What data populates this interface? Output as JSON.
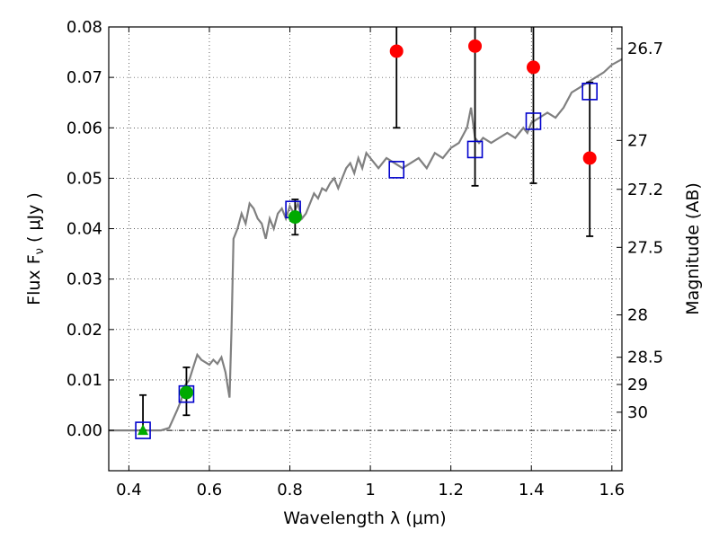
{
  "chart_data": {
    "type": "scatter",
    "xlabel": "Wavelength  λ (μm)",
    "ylabel_left": "Flux  F",
    "ylabel_left_sub": "ν",
    "ylabel_left_unit": "  ( μJy )",
    "ylabel_right": "Magnitude (AB)",
    "xlim": [
      0.35,
      1.625
    ],
    "ylim": [
      -0.008,
      0.08
    ],
    "grid": true,
    "x_ticks": [
      0.4,
      0.6,
      0.8,
      1.0,
      1.2,
      1.4,
      1.6
    ],
    "x_tick_labels": [
      "0.4",
      "0.6",
      "0.8",
      "1",
      "1.2",
      "1.4",
      "1.6"
    ],
    "y_ticks": [
      0.0,
      0.01,
      0.02,
      0.03,
      0.04,
      0.05,
      0.06,
      0.07,
      0.08
    ],
    "y_tick_labels": [
      "0.00",
      "0.01",
      "0.02",
      "0.03",
      "0.04",
      "0.05",
      "0.06",
      "0.07",
      "0.08"
    ],
    "right_ticks": [
      {
        "label": "26.7",
        "flux": 0.0757
      },
      {
        "label": "27",
        "flux": 0.0575
      },
      {
        "label": "27.2",
        "flux": 0.0478
      },
      {
        "label": "27.5",
        "flux": 0.0363
      },
      {
        "label": "28",
        "flux": 0.0229
      },
      {
        "label": "28.5",
        "flux": 0.0145
      },
      {
        "label": "29",
        "flux": 0.0091
      },
      {
        "label": "30",
        "flux": 0.0036
      }
    ],
    "model_spectrum": {
      "color": "#808080",
      "x": [
        0.35,
        0.48,
        0.5,
        0.52,
        0.53,
        0.54,
        0.55,
        0.56,
        0.57,
        0.58,
        0.59,
        0.6,
        0.61,
        0.62,
        0.63,
        0.64,
        0.645,
        0.65,
        0.655,
        0.66,
        0.67,
        0.68,
        0.69,
        0.7,
        0.71,
        0.72,
        0.73,
        0.74,
        0.75,
        0.76,
        0.77,
        0.78,
        0.79,
        0.8,
        0.81,
        0.82,
        0.83,
        0.84,
        0.85,
        0.86,
        0.87,
        0.88,
        0.89,
        0.9,
        0.91,
        0.92,
        0.93,
        0.94,
        0.95,
        0.96,
        0.97,
        0.98,
        0.99,
        1.0,
        1.02,
        1.04,
        1.06,
        1.08,
        1.1,
        1.12,
        1.14,
        1.16,
        1.18,
        1.2,
        1.22,
        1.24,
        1.25,
        1.26,
        1.27,
        1.28,
        1.3,
        1.32,
        1.34,
        1.36,
        1.38,
        1.39,
        1.4,
        1.42,
        1.44,
        1.46,
        1.48,
        1.5,
        1.52,
        1.54,
        1.56,
        1.58,
        1.6,
        1.625
      ],
      "y": [
        0.0,
        0.0,
        0.0005,
        0.004,
        0.006,
        0.009,
        0.01,
        0.0125,
        0.015,
        0.014,
        0.0135,
        0.013,
        0.014,
        0.0132,
        0.0145,
        0.0115,
        0.009,
        0.0065,
        0.02,
        0.038,
        0.04,
        0.043,
        0.041,
        0.045,
        0.044,
        0.042,
        0.041,
        0.038,
        0.042,
        0.04,
        0.043,
        0.044,
        0.042,
        0.0445,
        0.043,
        0.045,
        0.042,
        0.043,
        0.045,
        0.047,
        0.046,
        0.048,
        0.0475,
        0.049,
        0.05,
        0.048,
        0.05,
        0.052,
        0.053,
        0.051,
        0.054,
        0.052,
        0.055,
        0.054,
        0.052,
        0.054,
        0.053,
        0.052,
        0.053,
        0.054,
        0.052,
        0.055,
        0.054,
        0.056,
        0.057,
        0.06,
        0.064,
        0.058,
        0.057,
        0.058,
        0.057,
        0.058,
        0.059,
        0.058,
        0.06,
        0.059,
        0.061,
        0.062,
        0.063,
        0.062,
        0.064,
        0.067,
        0.068,
        0.069,
        0.07,
        0.071,
        0.0725,
        0.0736
      ]
    },
    "model_photometry": {
      "marker": "open-square",
      "color": "#0000cc",
      "x": [
        0.435,
        0.543,
        0.808,
        1.065,
        1.26,
        1.405,
        1.545
      ],
      "y": [
        0.0,
        0.0072,
        0.0438,
        0.0517,
        0.0557,
        0.0613,
        0.0672
      ]
    },
    "detections": {
      "marker": "filled-circle",
      "color": "#00aa00",
      "x": [
        0.543,
        0.813
      ],
      "y": [
        0.0075,
        0.0423
      ],
      "err_low": [
        0.0045,
        0.0035
      ],
      "err_high": [
        0.005,
        0.0035
      ]
    },
    "upper_limit_point": {
      "marker": "filled-triangle",
      "color": "#00aa00",
      "x": [
        0.435
      ],
      "y": [
        0.0
      ],
      "err_low": [
        0.0
      ],
      "err_high": [
        0.007
      ]
    },
    "nondetections": {
      "marker": "filled-circle",
      "color": "#ff0000",
      "x": [
        1.065,
        1.26,
        1.405,
        1.545
      ],
      "y": [
        0.0752,
        0.0762,
        0.072,
        0.054
      ],
      "err_low": [
        0.0152,
        0.0277,
        0.023,
        0.0155
      ],
      "err_high": [
        0.015,
        0.015,
        0.015,
        0.015
      ]
    }
  }
}
